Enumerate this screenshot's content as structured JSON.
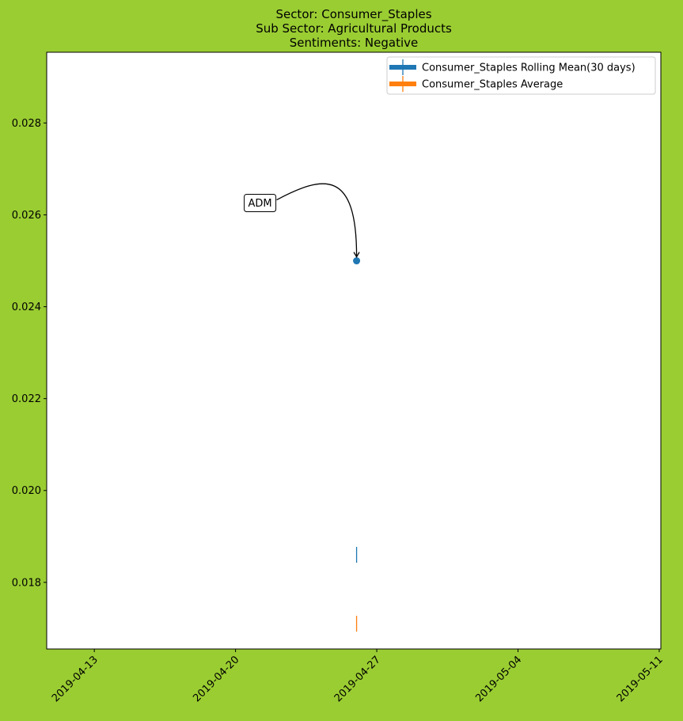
{
  "chart_data": {
    "type": "scatter",
    "title_lines": [
      "Sector:  Consumer_Staples",
      "Sub Sector:  Agricultural Products",
      "Sentiments:  Negative"
    ],
    "xlabel": "",
    "ylabel": "",
    "xlim": [
      "2019-04-11",
      "2019-05-11"
    ],
    "ylim": [
      0.01655,
      0.02954
    ],
    "x_ticks": [
      "2019-04-13",
      "2019-04-20",
      "2019-04-27",
      "2019-05-04",
      "2019-05-11"
    ],
    "y_ticks": [
      0.018,
      0.02,
      0.022,
      0.024,
      0.026,
      0.028
    ],
    "y_tick_labels": [
      "0.018",
      "0.020",
      "0.022",
      "0.024",
      "0.026",
      "0.028"
    ],
    "grid": false,
    "legend_placement": "top-right",
    "points": [
      {
        "x": "2019-04-26",
        "y": 0.025,
        "label": "ADM",
        "color": "#1f77b4"
      }
    ],
    "series": [
      {
        "name": "Consumer_Staples Rolling Mean(30 days)",
        "x": [
          "2019-04-26"
        ],
        "values": [
          0.0186
        ],
        "color": "#1f77b4"
      },
      {
        "name": "Consumer_Staples Average",
        "x": [
          "2019-04-26"
        ],
        "values": [
          0.0171
        ],
        "color": "#ff7f0e"
      }
    ],
    "annotations": [
      {
        "text": "ADM",
        "x": "2019-04-26",
        "y": 0.025
      }
    ]
  },
  "colors": {
    "background": "#9acd32",
    "plot_area": "#ffffff",
    "point": "#1f77b4",
    "rolling_mean": "#1f77b4",
    "average": "#ff7f0e"
  }
}
